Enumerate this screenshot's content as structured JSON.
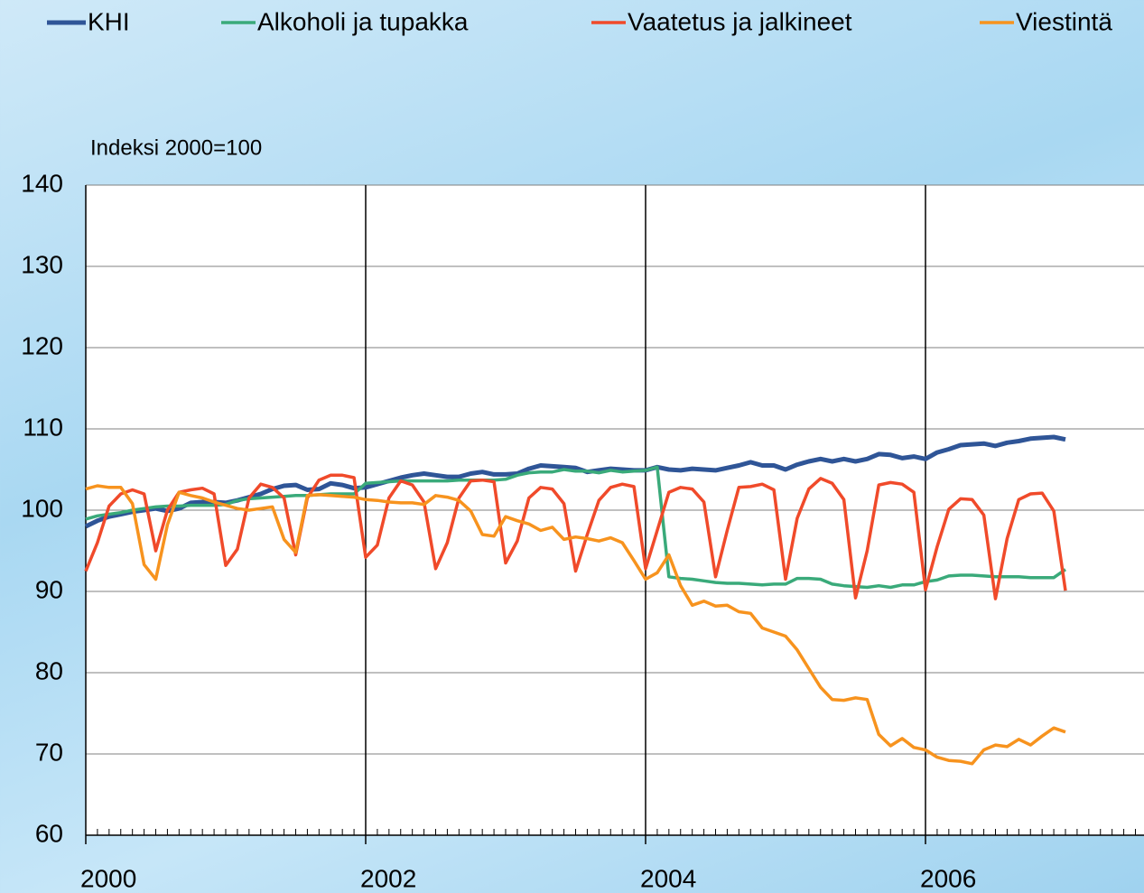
{
  "chart_data": {
    "type": "line",
    "y_label": "Indeksi 2000=100",
    "categories": [
      "2000",
      null,
      null,
      null,
      null,
      null,
      null,
      null,
      null,
      null,
      null,
      null,
      null,
      null,
      null,
      null,
      null,
      null,
      null,
      null,
      null,
      null,
      null,
      null,
      "2002",
      null,
      null,
      null,
      null,
      null,
      null,
      null,
      null,
      null,
      null,
      null,
      null,
      null,
      null,
      null,
      null,
      null,
      null,
      null,
      null,
      null,
      null,
      null,
      "2004",
      null,
      null,
      null,
      null,
      null,
      null,
      null,
      null,
      null,
      null,
      null,
      null,
      null,
      null,
      null,
      null,
      null,
      null,
      null,
      null,
      null,
      null,
      null,
      "2006",
      null,
      null,
      null,
      null,
      null,
      null,
      null,
      null,
      null,
      null,
      null,
      null
    ],
    "ylim": [
      60,
      140
    ],
    "yticks": [
      60,
      70,
      80,
      90,
      100,
      110,
      120,
      130,
      140
    ],
    "grid": true,
    "series": [
      {
        "name": "KHI",
        "color": "#2f5597",
        "values": [
          98.0,
          98.7,
          99.2,
          99.5,
          99.8,
          100.0,
          100.2,
          99.9,
          100.2,
          100.9,
          101.0,
          101.0,
          100.9,
          101.2,
          101.6,
          102.0,
          102.6,
          103.0,
          103.1,
          102.5,
          102.6,
          103.3,
          103.1,
          102.7,
          102.8,
          103.2,
          103.6,
          104.0,
          104.3,
          104.5,
          104.3,
          104.1,
          104.1,
          104.5,
          104.7,
          104.4,
          104.4,
          104.5,
          105.1,
          105.5,
          105.4,
          105.3,
          105.2,
          104.7,
          104.9,
          105.1,
          105.0,
          104.9,
          104.9,
          105.3,
          105.0,
          104.9,
          105.1,
          105.0,
          104.9,
          105.2,
          105.5,
          105.9,
          105.5,
          105.5,
          105.0,
          105.6,
          106.0,
          106.3,
          106.0,
          106.3,
          106.0,
          106.3,
          106.9,
          106.8,
          106.4,
          106.6,
          106.3,
          107.1,
          107.5,
          108.0,
          108.1,
          108.2,
          107.9,
          108.3,
          108.5,
          108.8,
          108.9,
          109.0,
          108.7
        ]
      },
      {
        "name": "Alkoholi ja tupakka",
        "color": "#3aaa7a",
        "values": [
          98.9,
          99.3,
          99.5,
          99.7,
          100.0,
          100.2,
          100.4,
          100.5,
          100.5,
          100.6,
          100.6,
          100.6,
          100.7,
          101.2,
          101.4,
          101.5,
          101.6,
          101.7,
          101.8,
          101.8,
          101.9,
          102.0,
          102.0,
          102.0,
          103.3,
          103.4,
          103.5,
          103.6,
          103.6,
          103.6,
          103.6,
          103.6,
          103.7,
          103.7,
          103.7,
          103.7,
          103.8,
          104.3,
          104.6,
          104.7,
          104.7,
          105.0,
          104.8,
          104.8,
          104.6,
          104.9,
          104.7,
          104.8,
          104.9,
          105.3,
          91.8,
          91.6,
          91.5,
          91.3,
          91.1,
          91.0,
          91.0,
          90.9,
          90.8,
          90.9,
          90.9,
          91.6,
          91.6,
          91.5,
          90.9,
          90.7,
          90.6,
          90.5,
          90.7,
          90.5,
          90.8,
          90.8,
          91.2,
          91.4,
          91.9,
          92.0,
          92.0,
          91.9,
          91.8,
          91.8,
          91.8,
          91.7,
          91.7,
          91.7,
          92.7
        ]
      },
      {
        "name": "Vaatetus ja jalkineet",
        "color": "#f04a2a",
        "values": [
          92.5,
          96.0,
          100.5,
          102.0,
          102.5,
          102.0,
          95.0,
          100.0,
          102.2,
          102.5,
          102.7,
          102.0,
          93.2,
          95.2,
          101.5,
          103.2,
          102.8,
          101.5,
          94.5,
          101.5,
          103.7,
          104.3,
          104.3,
          104.0,
          94.2,
          95.7,
          101.5,
          103.6,
          103.1,
          101.0,
          92.8,
          96.0,
          101.5,
          103.6,
          103.7,
          103.5,
          93.5,
          96.2,
          101.5,
          102.8,
          102.6,
          100.8,
          92.5,
          97.0,
          101.2,
          102.8,
          103.2,
          102.9,
          92.8,
          97.5,
          102.2,
          102.8,
          102.6,
          101.0,
          91.8,
          97.5,
          102.8,
          102.9,
          103.2,
          102.5,
          91.5,
          99.0,
          102.6,
          103.9,
          103.3,
          101.3,
          89.2,
          95.0,
          103.1,
          103.4,
          103.2,
          102.2,
          90.2,
          95.5,
          100.1,
          101.4,
          101.3,
          99.4,
          89.1,
          96.5,
          101.3,
          102.0,
          102.1,
          99.9,
          90.1
        ]
      },
      {
        "name": "Viestintä",
        "color": "#f7931e",
        "values": [
          102.6,
          103.0,
          102.8,
          102.8,
          100.8,
          93.3,
          91.5,
          98.2,
          102.2,
          101.8,
          101.5,
          101.0,
          100.6,
          100.2,
          100.0,
          100.2,
          100.4,
          96.4,
          94.8,
          101.8,
          101.9,
          101.8,
          101.7,
          101.6,
          101.3,
          101.2,
          101.0,
          100.9,
          100.9,
          100.7,
          101.8,
          101.6,
          101.2,
          99.9,
          97.0,
          96.8,
          99.2,
          98.7,
          98.3,
          97.5,
          97.9,
          96.4,
          96.7,
          96.5,
          96.2,
          96.6,
          96.0,
          93.8,
          91.5,
          92.3,
          94.5,
          90.7,
          88.3,
          88.8,
          88.2,
          88.3,
          87.5,
          87.3,
          85.5,
          85.0,
          84.5,
          82.8,
          80.5,
          78.2,
          76.7,
          76.6,
          76.9,
          76.7,
          72.4,
          71.0,
          71.9,
          70.8,
          70.5,
          69.6,
          69.2,
          69.1,
          68.8,
          70.5,
          71.1,
          70.9,
          71.8,
          71.1,
          72.2,
          73.2,
          72.7
        ]
      }
    ]
  }
}
